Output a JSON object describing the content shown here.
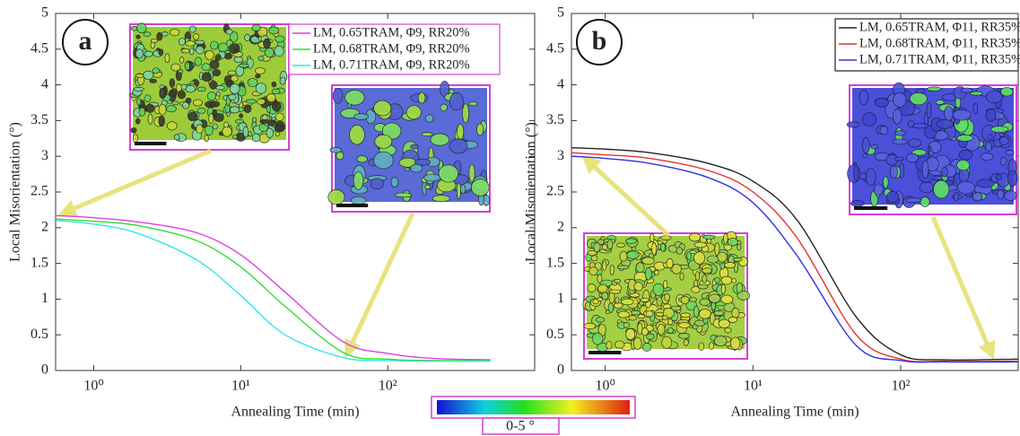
{
  "chart_data": [
    {
      "type": "line",
      "panel_label": "a",
      "xlabel": "Annealing Time (min)",
      "ylabel": "Local Misorientation (°)",
      "xscale": "log",
      "xlim": [
        0.55,
        1000
      ],
      "ylim": [
        0,
        5
      ],
      "xticks": [
        {
          "value": 1,
          "label": "10⁰"
        },
        {
          "value": 10,
          "label": "10¹"
        },
        {
          "value": 100,
          "label": "10²"
        }
      ],
      "yticks": [
        0,
        0.5,
        1,
        1.5,
        2,
        2.5,
        3,
        3.5,
        4,
        4.5,
        5
      ],
      "legend": "upper right",
      "legend_border": "#d63fd6",
      "x": [
        0.55,
        1,
        2,
        5,
        10,
        20,
        50,
        100,
        200,
        500
      ],
      "series": [
        {
          "name": "LM, 0.65TRAM, Φ9, RR20%",
          "color": "#e040e0",
          "values": [
            2.17,
            2.14,
            2.08,
            1.93,
            1.62,
            1.1,
            0.4,
            0.24,
            0.17,
            0.15
          ]
        },
        {
          "name": "LM, 0.68TRAM, Φ9, RR20%",
          "color": "#33dd33",
          "values": [
            2.12,
            2.09,
            2.03,
            1.82,
            1.45,
            0.9,
            0.25,
            0.16,
            0.14,
            0.14
          ]
        },
        {
          "name": "LM, 0.71TRAM, Φ9, RR20%",
          "color": "#33e6e6",
          "values": [
            2.1,
            2.05,
            1.92,
            1.55,
            1.05,
            0.5,
            0.18,
            0.14,
            0.13,
            0.13
          ]
        }
      ]
    },
    {
      "type": "line",
      "panel_label": "b",
      "xlabel": "Annealing Time (min)",
      "ylabel": "Local Misorientation (°)",
      "xscale": "log",
      "xlim": [
        0.59,
        625
      ],
      "ylim": [
        0,
        5
      ],
      "xticks": [
        {
          "value": 1,
          "label": "10⁰"
        },
        {
          "value": 10,
          "label": "10¹"
        },
        {
          "value": 100,
          "label": "10²"
        }
      ],
      "yticks": [
        0,
        0.5,
        1,
        1.5,
        2,
        2.5,
        3,
        3.5,
        4,
        4.5,
        5
      ],
      "legend": "upper right",
      "legend_border": "#222222",
      "x": [
        0.59,
        1,
        2,
        5,
        10,
        20,
        50,
        100,
        200,
        625
      ],
      "series": [
        {
          "name": "LM, 0.65TRAM, Φ11, RR35%",
          "color": "#222222",
          "values": [
            3.12,
            3.1,
            3.05,
            2.9,
            2.65,
            2.1,
            0.75,
            0.22,
            0.15,
            0.16
          ]
        },
        {
          "name": "LM, 0.68TRAM, Φ11, RR35%",
          "color": "#e83030",
          "values": [
            3.05,
            3.02,
            2.97,
            2.8,
            2.5,
            1.85,
            0.5,
            0.16,
            0.13,
            0.13
          ]
        },
        {
          "name": "LM, 0.71TRAM, Φ11, RR35%",
          "color": "#3030e8",
          "values": [
            3.0,
            2.97,
            2.9,
            2.7,
            2.35,
            1.6,
            0.35,
            0.14,
            0.12,
            0.12
          ]
        }
      ]
    }
  ],
  "colorbar": {
    "label": "0-5 °"
  }
}
